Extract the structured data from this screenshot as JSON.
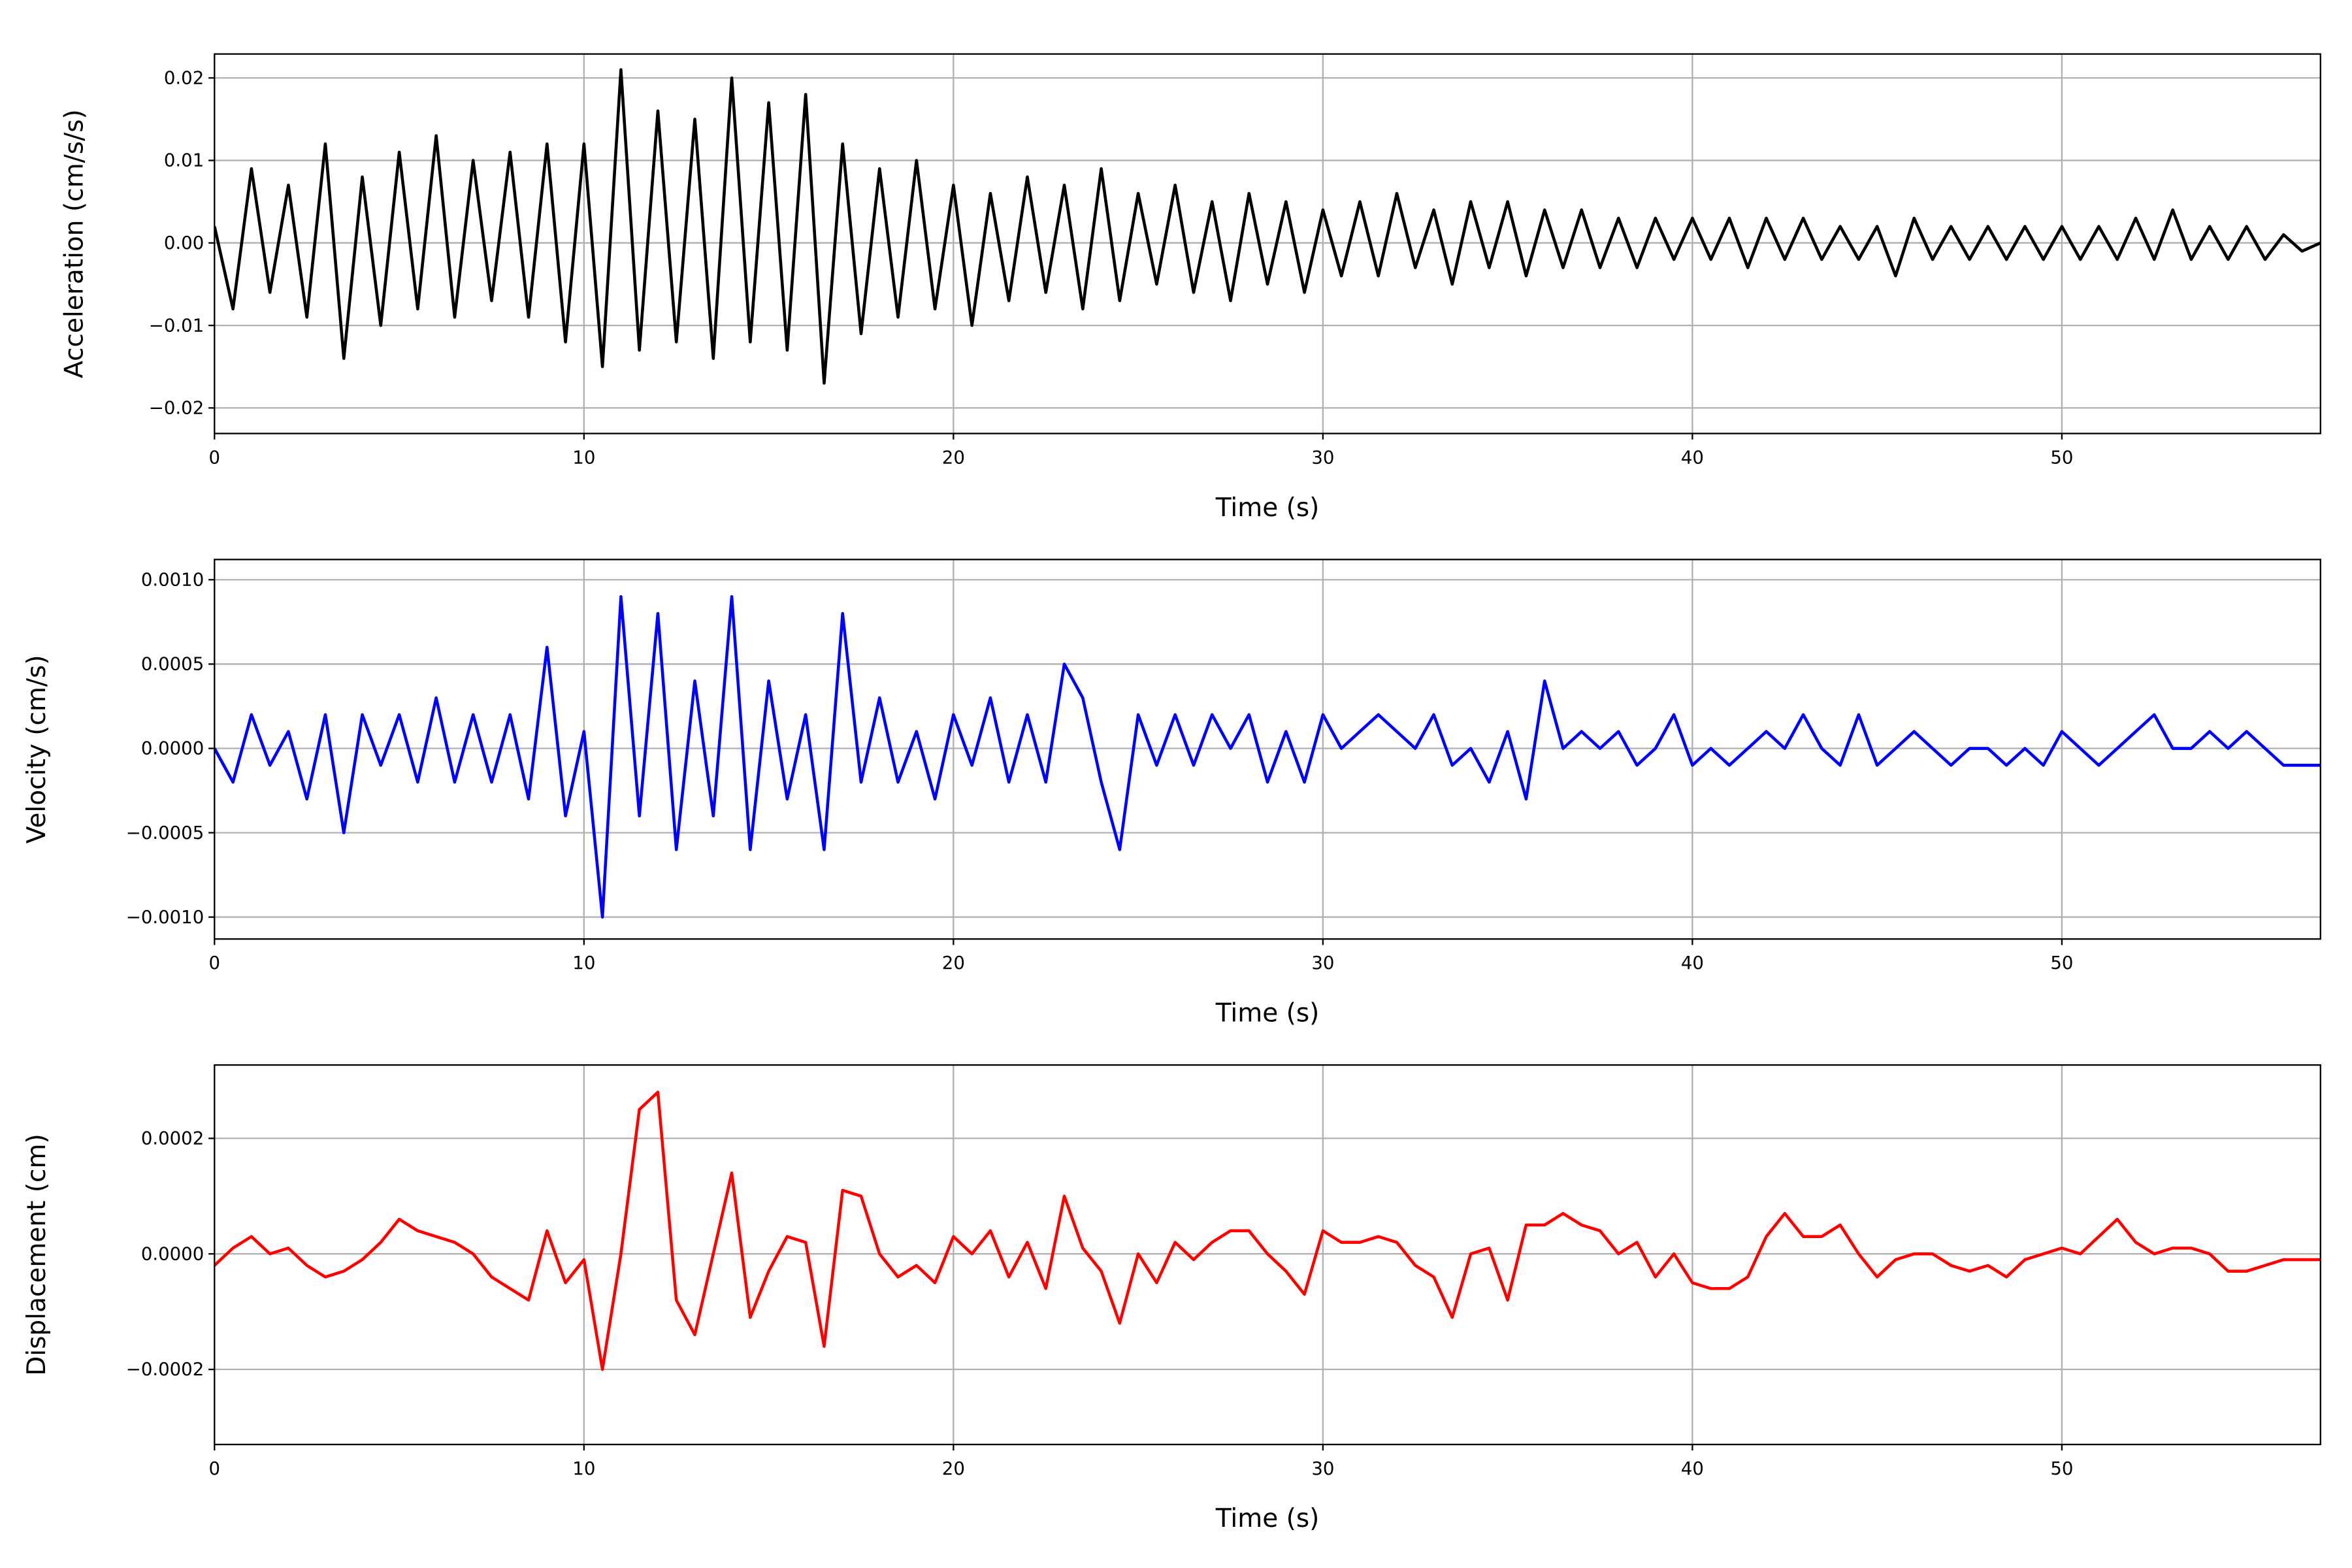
{
  "chart_data": [
    {
      "type": "line",
      "ylabel": "Acceleration (cm/s/s)",
      "xlabel": "Time (s)",
      "color": "#000000",
      "grid": true,
      "xlim": [
        0,
        57
      ],
      "xticks": [
        0,
        10,
        20,
        30,
        40,
        50
      ],
      "ylim": [
        -0.0231,
        0.0229
      ],
      "yticks": [
        {
          "value": -0.02,
          "label": "−0.02"
        },
        {
          "value": -0.01,
          "label": "−0.01"
        },
        {
          "value": 0,
          "label": "0.00"
        },
        0.01,
        0.02
      ],
      "x": [
        0,
        0.5,
        1,
        1.5,
        2,
        2.5,
        3,
        3.5,
        4,
        4.5,
        5,
        5.5,
        6,
        6.5,
        7,
        7.5,
        8,
        8.5,
        9,
        9.5,
        10,
        10.5,
        11,
        11.5,
        12,
        12.5,
        13,
        13.5,
        14,
        14.5,
        15,
        15.5,
        16,
        16.5,
        17,
        17.5,
        18,
        18.5,
        19,
        19.5,
        20,
        20.5,
        21,
        21.5,
        22,
        22.5,
        23,
        23.5,
        24,
        24.5,
        25,
        25.5,
        26,
        26.5,
        27,
        27.5,
        28,
        28.5,
        29,
        29.5,
        30,
        30.5,
        31,
        31.5,
        32,
        32.5,
        33,
        33.5,
        34,
        34.5,
        35,
        35.5,
        36,
        36.5,
        37,
        37.5,
        38,
        38.5,
        39,
        39.5,
        40,
        40.5,
        41,
        41.5,
        42,
        42.5,
        43,
        43.5,
        44,
        44.5,
        45,
        45.5,
        46,
        46.5,
        47,
        47.5,
        48,
        48.5,
        49,
        49.5,
        50,
        50.5,
        51,
        51.5,
        52,
        52.5,
        53,
        53.5,
        54,
        54.5,
        55,
        55.5,
        56,
        56.5,
        57
      ],
      "values": [
        0.002,
        -0.008,
        0.009,
        -0.006,
        0.007,
        -0.009,
        0.012,
        -0.014,
        0.008,
        -0.01,
        0.011,
        -0.008,
        0.013,
        -0.009,
        0.01,
        -0.007,
        0.011,
        -0.009,
        0.012,
        -0.012,
        0.012,
        -0.015,
        0.021,
        -0.013,
        0.016,
        -0.012,
        0.015,
        -0.014,
        0.02,
        -0.012,
        0.017,
        -0.013,
        0.018,
        -0.017,
        0.012,
        -0.011,
        0.009,
        -0.009,
        0.01,
        -0.008,
        0.007,
        -0.01,
        0.006,
        -0.007,
        0.008,
        -0.006,
        0.007,
        -0.008,
        0.009,
        -0.007,
        0.006,
        -0.005,
        0.007,
        -0.006,
        0.005,
        -0.007,
        0.006,
        -0.005,
        0.005,
        -0.006,
        0.004,
        -0.004,
        0.005,
        -0.004,
        0.006,
        -0.003,
        0.004,
        -0.005,
        0.005,
        -0.003,
        0.005,
        -0.004,
        0.004,
        -0.003,
        0.004,
        -0.003,
        0.003,
        -0.003,
        0.003,
        -0.002,
        0.003,
        -0.002,
        0.003,
        -0.003,
        0.003,
        -0.002,
        0.003,
        -0.002,
        0.002,
        -0.002,
        0.002,
        -0.004,
        0.003,
        -0.002,
        0.002,
        -0.002,
        0.002,
        -0.002,
        0.002,
        -0.002,
        0.002,
        -0.002,
        0.002,
        -0.002,
        0.003,
        -0.002,
        0.004,
        -0.002,
        0.002,
        -0.002,
        0.002,
        -0.002,
        0.001,
        -0.001,
        0.0
      ]
    },
    {
      "type": "line",
      "ylabel": "Velocity (cm/s)",
      "xlabel": "Time (s)",
      "color": "#0000ff",
      "grid": true,
      "xlim": [
        0,
        57
      ],
      "xticks": [
        0,
        10,
        20,
        30,
        40,
        50
      ],
      "ylim": [
        -0.00113,
        0.00112
      ],
      "yticks": [
        {
          "value": -0.001,
          "label": "−0.0010"
        },
        {
          "value": -0.0005,
          "label": "−0.0005"
        },
        {
          "value": 0,
          "label": "0.0000"
        },
        0.0005,
        {
          "value": 0.001,
          "label": "0.0010"
        }
      ],
      "x": [
        0,
        0.5,
        1,
        1.5,
        2,
        2.5,
        3,
        3.5,
        4,
        4.5,
        5,
        5.5,
        6,
        6.5,
        7,
        7.5,
        8,
        8.5,
        9,
        9.5,
        10,
        10.5,
        11,
        11.5,
        12,
        12.5,
        13,
        13.5,
        14,
        14.5,
        15,
        15.5,
        16,
        16.5,
        17,
        17.5,
        18,
        18.5,
        19,
        19.5,
        20,
        20.5,
        21,
        21.5,
        22,
        22.5,
        23,
        23.5,
        24,
        24.5,
        25,
        25.5,
        26,
        26.5,
        27,
        27.5,
        28,
        28.5,
        29,
        29.5,
        30,
        30.5,
        31,
        31.5,
        32,
        32.5,
        33,
        33.5,
        34,
        34.5,
        35,
        35.5,
        36,
        36.5,
        37,
        37.5,
        38,
        38.5,
        39,
        39.5,
        40,
        40.5,
        41,
        41.5,
        42,
        42.5,
        43,
        43.5,
        44,
        44.5,
        45,
        45.5,
        46,
        46.5,
        47,
        47.5,
        48,
        48.5,
        49,
        49.5,
        50,
        50.5,
        51,
        51.5,
        52,
        52.5,
        53,
        53.5,
        54,
        54.5,
        55,
        55.5,
        56,
        56.5,
        57
      ],
      "values": [
        0.0,
        -0.0002,
        0.0002,
        -0.0001,
        0.0001,
        -0.0003,
        0.0002,
        -0.0005,
        0.0002,
        -0.0001,
        0.0002,
        -0.0002,
        0.0003,
        -0.0002,
        0.0002,
        -0.0002,
        0.0002,
        -0.0003,
        0.0006,
        -0.0004,
        0.0001,
        -0.001,
        0.0009,
        -0.0004,
        0.0008,
        -0.0006,
        0.0004,
        -0.0004,
        0.0009,
        -0.0006,
        0.0004,
        -0.0003,
        0.0002,
        -0.0006,
        0.0008,
        -0.0002,
        0.0003,
        -0.0002,
        0.0001,
        -0.0003,
        0.0002,
        -0.0001,
        0.0003,
        -0.0002,
        0.0002,
        -0.0002,
        0.0005,
        0.0003,
        -0.0002,
        -0.0006,
        0.0002,
        -0.0001,
        0.0002,
        -0.0001,
        0.0002,
        0.0,
        0.0002,
        -0.0002,
        0.0001,
        -0.0002,
        0.0002,
        0.0,
        0.0001,
        0.0002,
        0.0001,
        0.0,
        0.0002,
        -0.0001,
        0.0,
        -0.0002,
        0.0001,
        -0.0003,
        0.0004,
        0.0,
        0.0001,
        0.0,
        0.0001,
        -0.0001,
        0.0,
        0.0002,
        -0.0001,
        0.0,
        -0.0001,
        0.0,
        0.0001,
        0.0,
        0.0002,
        0.0,
        -0.0001,
        0.0002,
        -0.0001,
        0.0,
        0.0001,
        0.0,
        -0.0001,
        0.0,
        0.0,
        -0.0001,
        0.0,
        -0.0001,
        0.0001,
        0.0,
        -0.0001,
        0.0,
        0.0001,
        0.0002,
        0.0,
        0.0,
        0.0001,
        0.0,
        0.0001,
        0.0,
        -0.0001,
        -0.0001,
        -0.0001
      ]
    },
    {
      "type": "line",
      "ylabel": "Displacement (cm)",
      "xlabel": "Time (s)",
      "color": "#ff0000",
      "grid": true,
      "xlim": [
        0,
        57
      ],
      "xticks": [
        0,
        10,
        20,
        30,
        40,
        50
      ],
      "ylim": [
        -0.00033,
        0.000327
      ],
      "yticks": [
        {
          "value": -0.0002,
          "label": "−0.0002"
        },
        {
          "value": 0,
          "label": "0.0000"
        },
        0.0002
      ],
      "x": [
        0,
        0.5,
        1,
        1.5,
        2,
        2.5,
        3,
        3.5,
        4,
        4.5,
        5,
        5.5,
        6,
        6.5,
        7,
        7.5,
        8,
        8.5,
        9,
        9.5,
        10,
        10.5,
        11,
        11.5,
        12,
        12.5,
        13,
        13.5,
        14,
        14.5,
        15,
        15.5,
        16,
        16.5,
        17,
        17.5,
        18,
        18.5,
        19,
        19.5,
        20,
        20.5,
        21,
        21.5,
        22,
        22.5,
        23,
        23.5,
        24,
        24.5,
        25,
        25.5,
        26,
        26.5,
        27,
        27.5,
        28,
        28.5,
        29,
        29.5,
        30,
        30.5,
        31,
        31.5,
        32,
        32.5,
        33,
        33.5,
        34,
        34.5,
        35,
        35.5,
        36,
        36.5,
        37,
        37.5,
        38,
        38.5,
        39,
        39.5,
        40,
        40.5,
        41,
        41.5,
        42,
        42.5,
        43,
        43.5,
        44,
        44.5,
        45,
        45.5,
        46,
        46.5,
        47,
        47.5,
        48,
        48.5,
        49,
        49.5,
        50,
        50.5,
        51,
        51.5,
        52,
        52.5,
        53,
        53.5,
        54,
        54.5,
        55,
        55.5,
        56,
        56.5,
        57
      ],
      "values": [
        -2e-05,
        1e-05,
        3e-05,
        0.0,
        1e-05,
        -2e-05,
        -4e-05,
        -3e-05,
        -1e-05,
        2e-05,
        6e-05,
        4e-05,
        3e-05,
        2e-05,
        0.0,
        -4e-05,
        -6e-05,
        -8e-05,
        4e-05,
        -5e-05,
        -1e-05,
        -0.0002,
        0.0,
        0.00025,
        0.00028,
        -8e-05,
        -0.00014,
        0.0,
        0.00014,
        -0.00011,
        -3e-05,
        3e-05,
        2e-05,
        -0.00016,
        0.00011,
        0.0001,
        0.0,
        -4e-05,
        -2e-05,
        -5e-05,
        3e-05,
        0.0,
        4e-05,
        -4e-05,
        2e-05,
        -6e-05,
        0.0001,
        1e-05,
        -3e-05,
        -0.00012,
        0.0,
        -5e-05,
        2e-05,
        -1e-05,
        2e-05,
        4e-05,
        4e-05,
        0.0,
        -3e-05,
        -7e-05,
        4e-05,
        2e-05,
        2e-05,
        3e-05,
        2e-05,
        -2e-05,
        -4e-05,
        -0.00011,
        0.0,
        1e-05,
        -8e-05,
        5e-05,
        5e-05,
        7e-05,
        5e-05,
        4e-05,
        0.0,
        2e-05,
        -4e-05,
        0.0,
        -5e-05,
        -6e-05,
        -6e-05,
        -4e-05,
        3e-05,
        7e-05,
        3e-05,
        3e-05,
        5e-05,
        0.0,
        -4e-05,
        -1e-05,
        0.0,
        0.0,
        -2e-05,
        -3e-05,
        -2e-05,
        -4e-05,
        -1e-05,
        0.0,
        1e-05,
        0.0,
        3e-05,
        6e-05,
        2e-05,
        0.0,
        1e-05,
        1e-05,
        0.0,
        -3e-05,
        -3e-05,
        -2e-05,
        -1e-05,
        -1e-05,
        -1e-05
      ]
    }
  ]
}
